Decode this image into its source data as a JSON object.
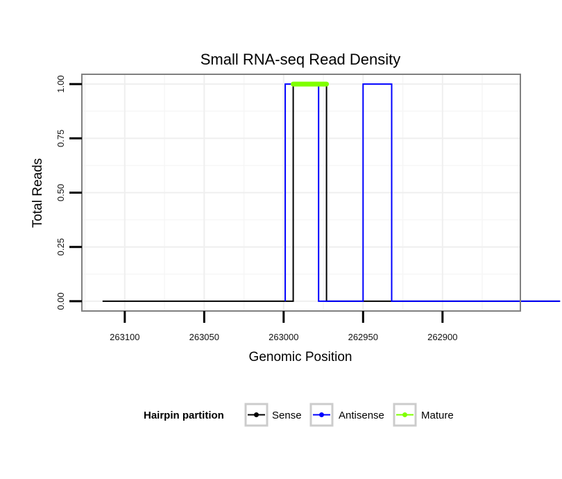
{
  "chart_data": {
    "type": "line",
    "title": "Small RNA-seq Read Density",
    "xlabel": "Genomic Position",
    "ylabel": "Total Reads",
    "x_reversed": true,
    "xlim": [
      263127,
      262851
    ],
    "ylim": [
      -0.045,
      1.045
    ],
    "x_ticks": [
      263100,
      263050,
      263000,
      262950,
      262900
    ],
    "x_tick_labels": [
      "263100",
      "263050",
      "263000",
      "262950",
      "262900"
    ],
    "y_ticks": [
      0,
      0.25,
      0.5,
      0.75,
      1.0
    ],
    "y_tick_labels": [
      "0.00",
      "0.25",
      "0.50",
      "0.75",
      "1.00"
    ],
    "grid": true,
    "legend": {
      "title": "Hairpin partition",
      "position": "bottom",
      "entries": [
        "Sense",
        "Antisense",
        "Mature"
      ]
    },
    "series": [
      {
        "name": "Sense",
        "color": "#000000",
        "x": [
          263114,
          262994,
          262994,
          262973,
          262973,
          262826
        ],
        "y": [
          0,
          0,
          1,
          1,
          0,
          0
        ]
      },
      {
        "name": "Antisense",
        "color": "#0000ff",
        "x": [
          262999,
          262999,
          262995,
          262978,
          262978,
          262950,
          262950,
          262932,
          262932,
          262826
        ],
        "y": [
          0,
          1,
          1,
          1,
          0,
          0,
          1,
          1,
          0,
          0
        ]
      },
      {
        "name": "Mature",
        "color": "#7fff00",
        "x": [
          262994,
          262973
        ],
        "y": [
          1,
          1
        ]
      }
    ]
  }
}
